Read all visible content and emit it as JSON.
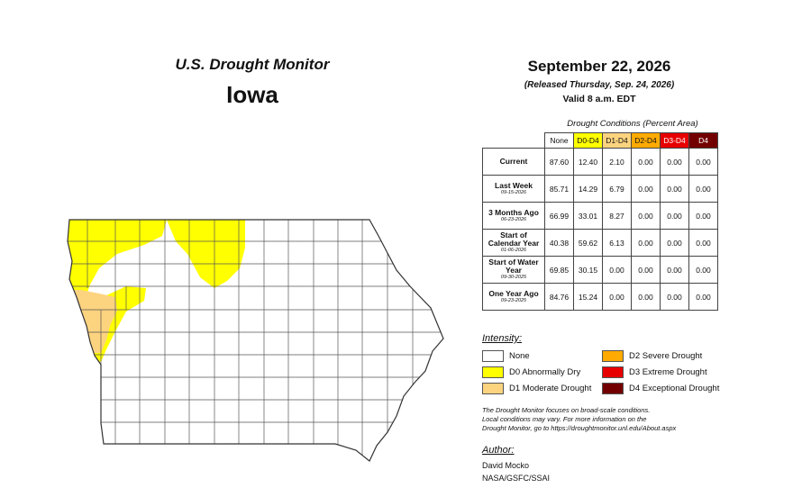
{
  "header": {
    "monitor_title": "U.S. Drought Monitor",
    "state": "Iowa",
    "date": "September 22, 2026",
    "released": "(Released Thursday, Sep. 24, 2026)",
    "valid": "Valid 8 a.m. EDT"
  },
  "table": {
    "caption": "Drought Conditions (Percent Area)",
    "columns": [
      "None",
      "D0-D4",
      "D1-D4",
      "D2-D4",
      "D3-D4",
      "D4"
    ],
    "rows": [
      {
        "label": "Current",
        "sublabel": "",
        "values": [
          "87.60",
          "12.40",
          "2.10",
          "0.00",
          "0.00",
          "0.00"
        ]
      },
      {
        "label": "Last Week",
        "sublabel": "09-15-2026",
        "values": [
          "85.71",
          "14.29",
          "6.79",
          "0.00",
          "0.00",
          "0.00"
        ]
      },
      {
        "label": "3 Months Ago",
        "sublabel": "06-23-2026",
        "values": [
          "66.99",
          "33.01",
          "8.27",
          "0.00",
          "0.00",
          "0.00"
        ]
      },
      {
        "label": "Start of Calendar Year",
        "sublabel": "01-06-2026",
        "values": [
          "40.38",
          "59.62",
          "6.13",
          "0.00",
          "0.00",
          "0.00"
        ]
      },
      {
        "label": "Start of Water Year",
        "sublabel": "09-30-2025",
        "values": [
          "69.85",
          "30.15",
          "0.00",
          "0.00",
          "0.00",
          "0.00"
        ]
      },
      {
        "label": "One Year Ago",
        "sublabel": "09-23-2025",
        "values": [
          "84.76",
          "15.24",
          "0.00",
          "0.00",
          "0.00",
          "0.00"
        ]
      }
    ]
  },
  "legend": {
    "title": "Intensity:",
    "items": {
      "none": "None",
      "d0": "D0 Abnormally Dry",
      "d1": "D1 Moderate Drought",
      "d2": "D2 Severe Drought",
      "d3": "D3 Extreme Drought",
      "d4": "D4 Exceptional Drought"
    }
  },
  "colors": {
    "none": "#ffffff",
    "d0": "#ffff00",
    "d1": "#fcd37f",
    "d2": "#ffaa00",
    "d3": "#e60000",
    "d4": "#730000"
  },
  "note": {
    "line1": "The Drought Monitor focuses on broad-scale conditions.",
    "line2": "Local conditions may vary. For more information on the",
    "line3": "Drought Monitor, go to https://droughtmonitor.unl.edu/About.aspx"
  },
  "author": {
    "title": "Author:",
    "name": "David Mocko",
    "org": "NASA/GSFC/SSAI"
  }
}
